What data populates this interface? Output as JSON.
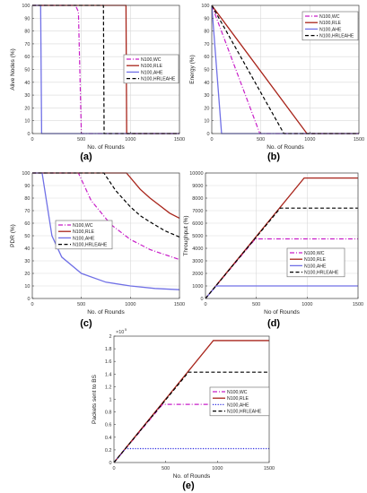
{
  "colors": {
    "WC": "#c81ec8",
    "RLE": "#a8241a",
    "AHE": "#7070e6",
    "HRLEAHE": "#000000"
  },
  "chart_data": [
    {
      "type": "line",
      "panel_label": "(a)",
      "xlabel": "No. of Rounds",
      "ylabel": "Alive Nodes (%)",
      "xlim": [
        0,
        1500
      ],
      "ylim": [
        0,
        100
      ],
      "grid": true,
      "legend_position": "center-right",
      "xticks": [
        0,
        500,
        1000,
        1500
      ],
      "yticks": [
        0,
        10,
        20,
        30,
        40,
        50,
        60,
        70,
        80,
        90,
        100
      ],
      "series": [
        {
          "name": "N100,WC",
          "style": "dashdot",
          "color": "#c81ec8",
          "x": [
            0,
            440,
            470,
            500,
            1500
          ],
          "y": [
            100,
            100,
            95,
            0,
            0
          ]
        },
        {
          "name": "N100,RLE",
          "style": "solid",
          "color": "#a8241a",
          "x": [
            0,
            955,
            962,
            1500
          ],
          "y": [
            100,
            100,
            0,
            0
          ]
        },
        {
          "name": "N100,AHE",
          "style": "solid",
          "color": "#7070e6",
          "x": [
            0,
            85,
            95,
            1500
          ],
          "y": [
            100,
            100,
            0,
            0
          ]
        },
        {
          "name": "N100,HRLEAHE",
          "style": "dashed",
          "color": "#000000",
          "x": [
            0,
            725,
            732,
            1500
          ],
          "y": [
            100,
            100,
            0,
            0
          ]
        }
      ]
    },
    {
      "type": "line",
      "panel_label": "(b)",
      "xlabel": "No. of Rounds",
      "ylabel": "Energy (%)",
      "xlim": [
        0,
        1500
      ],
      "ylim": [
        0,
        100
      ],
      "grid": true,
      "legend_position": "top-right",
      "xticks": [
        0,
        500,
        1000,
        1500
      ],
      "yticks": [
        0,
        10,
        20,
        30,
        40,
        50,
        60,
        70,
        80,
        90,
        100
      ],
      "series": [
        {
          "name": "N100,WC",
          "style": "dashdot",
          "color": "#c81ec8",
          "x": [
            0,
            490,
            1500
          ],
          "y": [
            100,
            0,
            0
          ]
        },
        {
          "name": "N100,RLE",
          "style": "solid",
          "color": "#a8241a",
          "x": [
            0,
            970,
            1500
          ],
          "y": [
            100,
            0,
            0
          ]
        },
        {
          "name": "N100,AHE",
          "style": "solid",
          "color": "#7070e6",
          "x": [
            0,
            100,
            1500
          ],
          "y": [
            100,
            0,
            0
          ]
        },
        {
          "name": "N100,HRLEAHE",
          "style": "dashed",
          "color": "#000000",
          "x": [
            0,
            735,
            1500
          ],
          "y": [
            100,
            0,
            0
          ]
        }
      ]
    },
    {
      "type": "line",
      "panel_label": "(c)",
      "xlabel": "No. of Rounds",
      "ylabel": "PDR (%)",
      "xlim": [
        0,
        1500
      ],
      "ylim": [
        0,
        100
      ],
      "grid": true,
      "legend_position": "center-left",
      "xticks": [
        0,
        500,
        1000,
        1500
      ],
      "yticks": [
        0,
        10,
        20,
        30,
        40,
        50,
        60,
        70,
        80,
        90,
        100
      ],
      "series": [
        {
          "name": "N100,WC",
          "style": "dashdot",
          "color": "#c81ec8",
          "x": [
            0,
            470,
            600,
            800,
            1000,
            1200,
            1500
          ],
          "y": [
            100,
            100,
            78,
            59,
            47,
            39,
            31
          ]
        },
        {
          "name": "N100,RLE",
          "style": "solid",
          "color": "#a8241a",
          "x": [
            0,
            960,
            1100,
            1200,
            1300,
            1400,
            1500
          ],
          "y": [
            100,
            100,
            87,
            80,
            74,
            68,
            64
          ]
        },
        {
          "name": "N100,AHE",
          "style": "solid",
          "color": "#7070e6",
          "x": [
            0,
            100,
            200,
            300,
            500,
            750,
            1000,
            1250,
            1500
          ],
          "y": [
            100,
            100,
            50,
            33,
            20,
            13,
            10,
            8,
            7
          ]
        },
        {
          "name": "N100,HRLEAHE",
          "style": "dashed",
          "color": "#000000",
          "x": [
            0,
            730,
            850,
            1000,
            1100,
            1200,
            1350,
            1500
          ],
          "y": [
            100,
            100,
            86,
            73,
            66,
            61,
            54,
            49
          ]
        }
      ]
    },
    {
      "type": "line",
      "panel_label": "(d)",
      "xlabel": "No of Rounds",
      "ylabel": "Throughput (%)",
      "xlim": [
        0,
        1500
      ],
      "ylim": [
        0,
        10000
      ],
      "grid": true,
      "legend_position": "bottom-right",
      "xticks": [
        0,
        500,
        1000,
        1500
      ],
      "yticks": [
        0,
        1000,
        2000,
        3000,
        4000,
        5000,
        6000,
        7000,
        8000,
        9000,
        10000
      ],
      "series": [
        {
          "name": "N100,WC",
          "style": "dashdot",
          "color": "#c81ec8",
          "x": [
            0,
            490,
            1500
          ],
          "y": [
            0,
            4750,
            4750
          ]
        },
        {
          "name": "N100,RLE",
          "style": "solid",
          "color": "#a8241a",
          "x": [
            0,
            970,
            1500
          ],
          "y": [
            0,
            9600,
            9600
          ]
        },
        {
          "name": "N100,AHE",
          "style": "solid",
          "color": "#7070e6",
          "x": [
            0,
            105,
            1500
          ],
          "y": [
            0,
            1000,
            1000
          ]
        },
        {
          "name": "N100,HRLEAHE",
          "style": "dashed",
          "color": "#000000",
          "x": [
            0,
            735,
            1500
          ],
          "y": [
            0,
            7200,
            7200
          ]
        }
      ]
    },
    {
      "type": "line",
      "panel_label": "(e)",
      "xlabel": "No. of Rounds",
      "ylabel": "Packets sent to BS",
      "exponent": "×10",
      "exponent_power": "5",
      "xlim": [
        0,
        1500
      ],
      "ylim": [
        0,
        2
      ],
      "grid": false,
      "legend_position": "center-right",
      "xticks": [
        0,
        500,
        1000,
        1500
      ],
      "yticks": [
        0,
        0.2,
        0.4,
        0.6,
        0.8,
        1,
        1.2,
        1.4,
        1.6,
        1.8,
        2
      ],
      "series": [
        {
          "name": "N100,WC",
          "style": "dashdot",
          "color": "#c81ec8",
          "x": [
            0,
            470,
            1500
          ],
          "y": [
            0,
            0.92,
            0.92
          ]
        },
        {
          "name": "N100,RLE",
          "style": "solid",
          "color": "#a8241a",
          "x": [
            0,
            960,
            1500
          ],
          "y": [
            0,
            1.93,
            1.93
          ]
        },
        {
          "name": "N100,AHE",
          "style": "dotted",
          "color": "#2a2ae0",
          "x": [
            0,
            110,
            1500
          ],
          "y": [
            0,
            0.22,
            0.22
          ]
        },
        {
          "name": "N100,HRLEAHE",
          "style": "dashed",
          "color": "#000000",
          "x": [
            0,
            720,
            1500
          ],
          "y": [
            0,
            1.43,
            1.43
          ]
        }
      ]
    }
  ]
}
